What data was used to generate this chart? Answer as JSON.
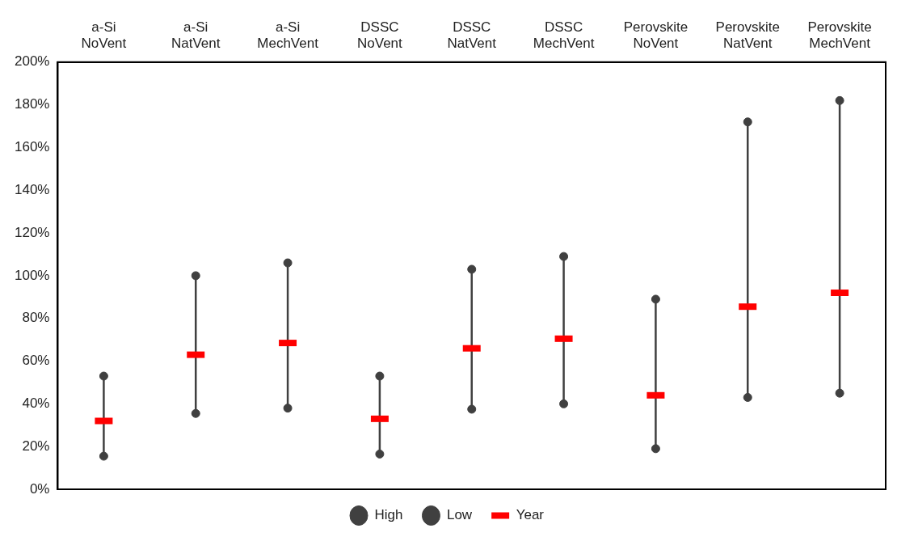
{
  "chart_data": {
    "type": "scatter",
    "categories": [
      "a-Si NoVent",
      "a-Si NatVent",
      "a-Si MechVent",
      "DSSC NoVent",
      "DSSC NatVent",
      "DSSC MechVent",
      "Perovskite NoVent",
      "Perovskite NatVent",
      "Perovskite MechVent"
    ],
    "series": [
      {
        "name": "High",
        "color": "#404040",
        "marker": "circle",
        "values": [
          53,
          100,
          106,
          53,
          103,
          109,
          89,
          172,
          182
        ]
      },
      {
        "name": "Low",
        "color": "#404040",
        "marker": "circle",
        "values": [
          15.5,
          35.5,
          38,
          16.5,
          37.5,
          40,
          19,
          43,
          45
        ]
      },
      {
        "name": "Year",
        "color": "#ff0000",
        "values": [
          32,
          63,
          68.5,
          33,
          66,
          70.5,
          44,
          85.5,
          92
        ]
      }
    ],
    "ylim": [
      0,
      200
    ],
    "yticks": [
      {
        "value": 0,
        "label": "0%"
      },
      {
        "value": 20,
        "label": "20%"
      },
      {
        "value": 40,
        "label": "40%"
      },
      {
        "value": 60,
        "label": "60%"
      },
      {
        "value": 80,
        "label": "80%"
      },
      {
        "value": 100,
        "label": "100%"
      },
      {
        "value": 120,
        "label": "120%"
      },
      {
        "value": 140,
        "label": "140%"
      },
      {
        "value": 160,
        "label": "160%"
      },
      {
        "value": 180,
        "label": "180%"
      },
      {
        "value": 200,
        "label": "200%"
      }
    ],
    "grid": false,
    "legend": "bottom"
  }
}
